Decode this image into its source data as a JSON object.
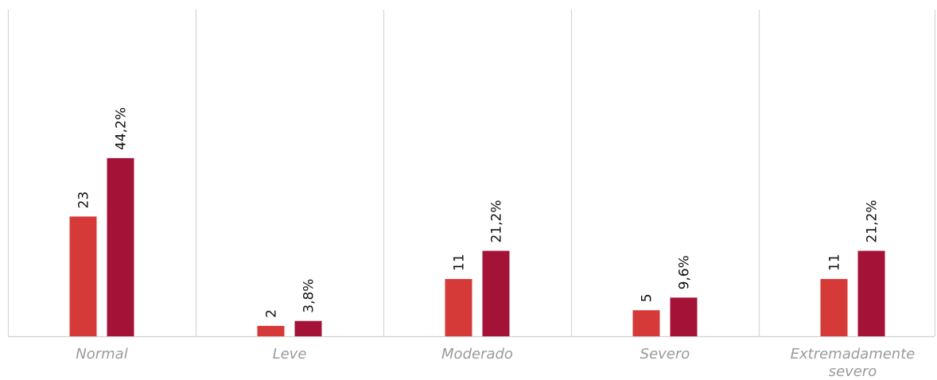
{
  "chart_data": {
    "type": "bar",
    "categories": [
      "Normal",
      "Leve",
      "Moderado",
      "Severo",
      "Extremadamente severo"
    ],
    "category_lines": [
      [
        "Normal"
      ],
      [
        "Leve"
      ],
      [
        "Moderado"
      ],
      [
        "Severo"
      ],
      [
        "Extremadamente",
        "severo"
      ]
    ],
    "series": [
      {
        "values": [
          23,
          2,
          11,
          5,
          11
        ],
        "labels": [
          "23",
          "2",
          "11",
          "5",
          "11"
        ],
        "color": "#d63a38"
      },
      {
        "values": [
          44.2,
          3.8,
          21.2,
          9.6,
          21.2
        ],
        "labels": [
          "44,2%",
          "3,8%",
          "21,2%",
          "9,6%",
          "21,2%"
        ],
        "color": "#a51238"
      }
    ],
    "title": "",
    "xlabel": "",
    "ylabel": "",
    "grid": "vertical separators between categories",
    "legend": "none"
  }
}
